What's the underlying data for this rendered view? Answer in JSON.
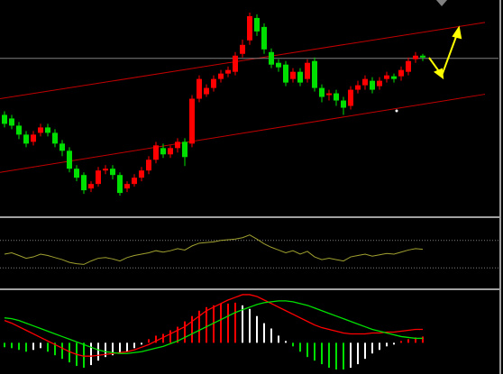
{
  "chart_data": [
    {
      "type": "candlestick",
      "ylim": [
        0,
        240
      ],
      "up_color": "#ff0000",
      "down_color": "#00e000",
      "open": [
        112,
        108,
        100,
        90,
        82,
        92,
        98,
        92,
        80,
        72,
        52,
        45,
        30,
        35,
        50,
        52,
        45,
        30,
        35,
        42,
        50,
        62,
        75,
        68,
        75,
        82,
        80,
        130,
        135,
        142,
        152,
        158,
        160,
        180,
        195,
        220,
        210,
        182,
        170,
        168,
        152,
        160,
        152,
        172,
        142,
        134,
        136,
        128,
        122,
        140,
        145,
        150,
        144,
        152,
        155,
        155,
        160,
        174,
        178
      ],
      "high": [
        116,
        112,
        104,
        94,
        94,
        102,
        102,
        96,
        84,
        76,
        56,
        48,
        38,
        54,
        56,
        56,
        48,
        38,
        46,
        54,
        66,
        82,
        80,
        78,
        86,
        86,
        134,
        156,
        146,
        156,
        162,
        166,
        182,
        196,
        226,
        224,
        214,
        186,
        174,
        172,
        164,
        164,
        174,
        176,
        146,
        140,
        140,
        132,
        144,
        150,
        156,
        154,
        154,
        160,
        158,
        166,
        176,
        182,
        180
      ],
      "low": [
        98,
        96,
        85,
        76,
        78,
        88,
        88,
        76,
        66,
        48,
        38,
        24,
        26,
        32,
        46,
        40,
        22,
        26,
        32,
        38,
        46,
        58,
        64,
        64,
        70,
        55,
        76,
        126,
        132,
        138,
        148,
        154,
        156,
        176,
        190,
        200,
        180,
        164,
        160,
        144,
        148,
        144,
        148,
        138,
        126,
        128,
        122,
        112,
        118,
        136,
        140,
        136,
        140,
        148,
        148,
        150,
        156,
        170,
        172
      ],
      "close": [
        102,
        100,
        90,
        80,
        90,
        98,
        92,
        80,
        72,
        52,
        42,
        28,
        35,
        50,
        52,
        45,
        25,
        35,
        42,
        50,
        62,
        78,
        68,
        75,
        82,
        65,
        130,
        152,
        142,
        152,
        158,
        162,
        178,
        190,
        222,
        205,
        185,
        168,
        165,
        148,
        160,
        148,
        170,
        142,
        132,
        136,
        128,
        120,
        140,
        145,
        152,
        140,
        150,
        156,
        152,
        162,
        172,
        178,
        176
      ],
      "trend_lines": [
        {
          "color": "#c00000",
          "values": [
            130,
            215
          ]
        },
        {
          "color": "#c00000",
          "values": [
            48,
            135
          ]
        }
      ],
      "hline": {
        "value": 175,
        "color": "#808080"
      }
    },
    {
      "type": "line",
      "ylim": [
        0,
        100
      ],
      "levels": [
        70,
        30
      ],
      "level_color": "#808080",
      "series": [
        {
          "color": "#a0a030",
          "values": [
            50,
            52,
            48,
            44,
            46,
            50,
            48,
            45,
            42,
            38,
            36,
            35,
            40,
            44,
            45,
            43,
            40,
            45,
            48,
            50,
            52,
            55,
            53,
            55,
            58,
            56,
            62,
            66,
            67,
            68,
            70,
            71,
            72,
            74,
            78,
            72,
            65,
            60,
            56,
            52,
            55,
            50,
            54,
            46,
            42,
            44,
            42,
            40,
            46,
            48,
            50,
            47,
            49,
            51,
            50,
            53,
            56,
            58,
            57
          ]
        }
      ]
    },
    {
      "type": "macd",
      "ylim": [
        -33,
        58
      ],
      "bars": {
        "color_positive": "#ff0000",
        "color_negative": "#00e000",
        "color_fading": "#ffffff",
        "values": [
          -5,
          -6,
          -8,
          -10,
          -8,
          -6,
          -10,
          -14,
          -18,
          -22,
          -26,
          -28,
          -25,
          -20,
          -16,
          -14,
          -12,
          -10,
          -6,
          -2,
          4,
          8,
          10,
          14,
          18,
          24,
          30,
          36,
          40,
          42,
          44,
          44,
          45,
          42,
          38,
          30,
          22,
          16,
          8,
          2,
          -4,
          -10,
          -16,
          -20,
          -24,
          -28,
          -30,
          -30,
          -28,
          -24,
          -18,
          -12,
          -8,
          -4,
          -2,
          2,
          4,
          6,
          7
        ]
      },
      "series": [
        {
          "color": "#ff0000",
          "values": [
            25,
            22,
            18,
            14,
            10,
            6,
            2,
            -2,
            -6,
            -10,
            -13,
            -15,
            -15,
            -14,
            -13,
            -12,
            -11,
            -10,
            -8,
            -5,
            -2,
            2,
            6,
            10,
            14,
            18,
            24,
            30,
            36,
            40,
            44,
            48,
            51,
            54,
            54,
            52,
            48,
            44,
            40,
            36,
            32,
            28,
            24,
            20,
            17,
            15,
            13,
            11,
            10,
            10,
            10,
            11,
            11,
            12,
            12,
            13,
            14,
            15,
            15
          ]
        },
        {
          "color": "#00e000",
          "values": [
            28,
            27,
            25,
            22,
            19,
            16,
            13,
            10,
            7,
            4,
            1,
            -2,
            -5,
            -8,
            -10,
            -11,
            -12,
            -12,
            -11,
            -10,
            -8,
            -6,
            -4,
            -1,
            2,
            6,
            10,
            14,
            18,
            22,
            26,
            30,
            34,
            37,
            40,
            43,
            45,
            46,
            47,
            47,
            46,
            44,
            42,
            39,
            36,
            33,
            30,
            27,
            24,
            21,
            18,
            15,
            13,
            11,
            9,
            7,
            6,
            5,
            5
          ]
        }
      ]
    }
  ]
}
